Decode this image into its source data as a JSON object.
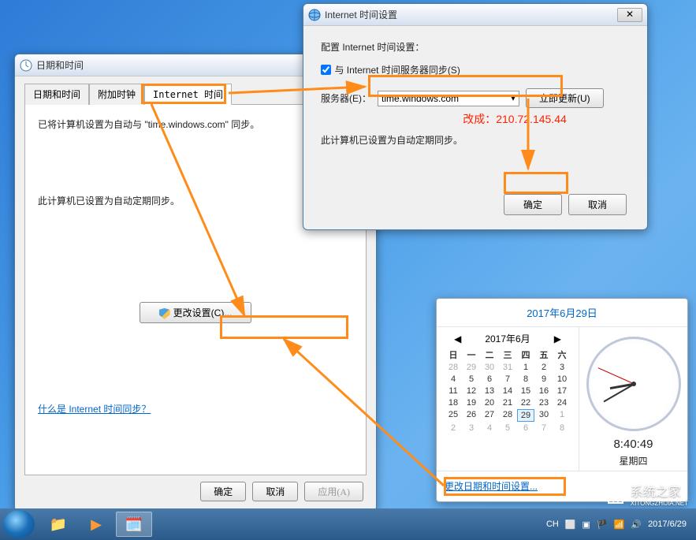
{
  "desktop": {
    "background_colors": [
      "#2e7bd6",
      "#4a9de8",
      "#6bb3f0"
    ],
    "highlight_color": "#ff8c1a"
  },
  "win_datetime": {
    "title": "日期和时间",
    "tabs": {
      "datetime": "日期和时间",
      "clocks": "附加时钟",
      "internet": "Internet 时间"
    },
    "line1": "已将计算机设置为自动与 \"time.windows.com\" 同步。",
    "line2": "此计算机已设置为自动定期同步。",
    "change_btn": "更改设置(C)...",
    "help_link": "什么是 Internet 时间同步？",
    "ok": "确定",
    "cancel": "取消",
    "apply": "应用(A)"
  },
  "win_internet": {
    "title": "Internet 时间设置",
    "config_label": "配置 Internet 时间设置：",
    "sync_checkbox": "与 Internet 时间服务器同步(S)",
    "server_label": "服务器(E)：",
    "server_value": "time.windows.com",
    "update_now": "立即更新(U)",
    "annotation": "改成：210.72.145.44",
    "scheduled": "此计算机已设置为自动定期同步。",
    "ok": "确定",
    "cancel": "取消"
  },
  "clock_popup": {
    "date_title": "2017年6月29日",
    "month_label": "2017年6月",
    "weekdays": [
      "日",
      "一",
      "二",
      "三",
      "四",
      "五",
      "六"
    ],
    "weeks": [
      [
        {
          "d": 28,
          "dim": true
        },
        {
          "d": 29,
          "dim": true
        },
        {
          "d": 30,
          "dim": true
        },
        {
          "d": 31,
          "dim": true
        },
        {
          "d": 1
        },
        {
          "d": 2
        },
        {
          "d": 3
        }
      ],
      [
        {
          "d": 4
        },
        {
          "d": 5
        },
        {
          "d": 6
        },
        {
          "d": 7
        },
        {
          "d": 8
        },
        {
          "d": 9
        },
        {
          "d": 10
        }
      ],
      [
        {
          "d": 11
        },
        {
          "d": 12
        },
        {
          "d": 13
        },
        {
          "d": 14
        },
        {
          "d": 15
        },
        {
          "d": 16
        },
        {
          "d": 17
        }
      ],
      [
        {
          "d": 18
        },
        {
          "d": 19
        },
        {
          "d": 20
        },
        {
          "d": 21
        },
        {
          "d": 22
        },
        {
          "d": 23
        },
        {
          "d": 24
        }
      ],
      [
        {
          "d": 25
        },
        {
          "d": 26
        },
        {
          "d": 27
        },
        {
          "d": 28
        },
        {
          "d": 29,
          "sel": true
        },
        {
          "d": 30
        },
        {
          "d": 1,
          "dim": true
        }
      ],
      [
        {
          "d": 2,
          "dim": true
        },
        {
          "d": 3,
          "dim": true
        },
        {
          "d": 4,
          "dim": true
        },
        {
          "d": 5,
          "dim": true
        },
        {
          "d": 6,
          "dim": true
        },
        {
          "d": 7,
          "dim": true
        },
        {
          "d": 8,
          "dim": true
        }
      ]
    ],
    "time": "8:40:49",
    "weekday_name": "星期四",
    "change_link": "更改日期和时间设置...",
    "hour_angle": 260,
    "minute_angle": 240,
    "second_angle": 294
  },
  "taskbar": {
    "lang": "CH",
    "date": "2017/6/29",
    "watermark": "系统之家",
    "watermark_sub": "XITONGZHIJIA.NET"
  }
}
